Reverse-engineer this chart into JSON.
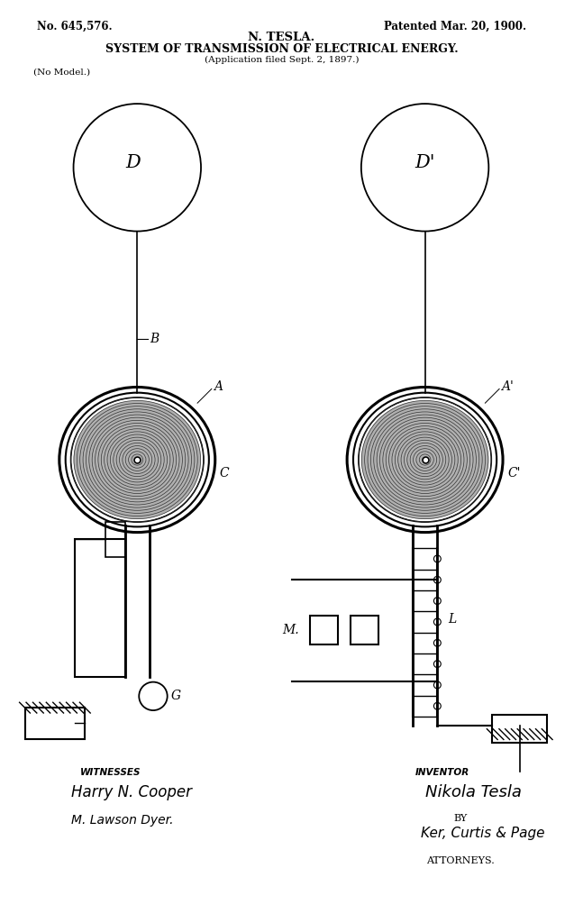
{
  "bg_color": "#ffffff",
  "header_line1_left": "No. 645,576.",
  "header_line1_right": "Patented Mar. 20, 1900.",
  "header_line2": "N. TESLA.",
  "header_line3": "SYSTEM OF TRANSMISSION OF ELECTRICAL ENERGY.",
  "header_line4": "(Application filed Sept. 2, 1897.)",
  "header_no_model": "(No Model.)",
  "black": "#000000",
  "coil_fill": "#b0b0b0",
  "coil_ring_color": "#333333",
  "witnesses_title": "WITNESSES",
  "inventor_title": "INVENTOR",
  "witness1": "Harry N. Cooper",
  "witness2": "M. Lawson Dyer.",
  "inventor_name": "Nikola Tesla",
  "by_text": "BY",
  "attorneys_name": "Ker, Curtis & Page",
  "attorneys_text": "ATTORNEYS."
}
